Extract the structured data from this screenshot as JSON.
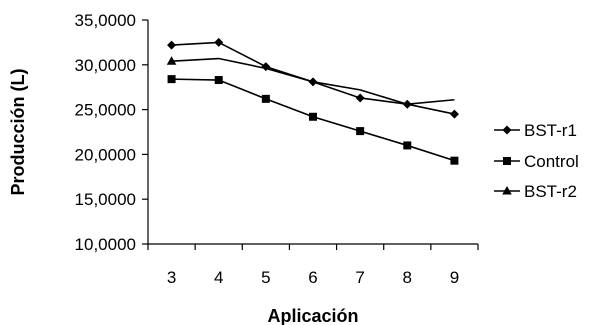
{
  "chart_data": {
    "type": "line",
    "title": "",
    "xlabel": "Aplicación",
    "ylabel": "Producción (L)",
    "x": [
      "3",
      "4",
      "5",
      "6",
      "7",
      "8",
      "9"
    ],
    "ylim": [
      10,
      35
    ],
    "yticks": [
      "35,0000",
      "30,0000",
      "25,0000",
      "20,0000",
      "15,0000",
      "10,0000"
    ],
    "grid": false,
    "legend_position": "right",
    "series": [
      {
        "name": "BST-r1",
        "marker": "diamond",
        "values": [
          32.2,
          32.5,
          29.8,
          28.1,
          26.3,
          25.6,
          24.5
        ],
        "color": "#000000"
      },
      {
        "name": "Control",
        "marker": "square",
        "values": [
          28.4,
          28.3,
          26.2,
          24.2,
          22.6,
          21.0,
          19.3
        ],
        "color": "#000000"
      },
      {
        "name": "BST-r2",
        "marker": "triangle",
        "values": [
          30.4,
          30.7,
          29.6,
          28.1,
          27.2,
          25.6,
          26.1
        ],
        "color": "#000000"
      }
    ]
  }
}
